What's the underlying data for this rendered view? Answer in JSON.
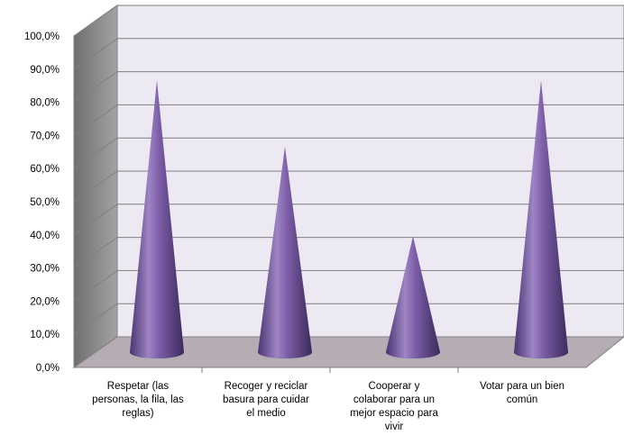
{
  "chart_data": {
    "type": "bar",
    "style": "3d-cone",
    "title": "",
    "xlabel": "",
    "ylabel": "",
    "ylim": [
      0,
      100
    ],
    "ytick_step": 10,
    "y_ticks": [
      "0,0%",
      "10,0%",
      "20,0%",
      "30,0%",
      "40,0%",
      "50,0%",
      "60,0%",
      "70,0%",
      "80,0%",
      "90,0%",
      "100,0%"
    ],
    "categories": [
      [
        "Respetar (las",
        "personas, la fila, las",
        "reglas)"
      ],
      [
        "Recoger y reciclar",
        "basura para cuidar",
        "el medio"
      ],
      [
        "Cooperar y",
        "colaborar para un",
        "mejor espacio para",
        "vivir"
      ],
      [
        "Votar para un bien",
        "común"
      ]
    ],
    "values": [
      82,
      62,
      35,
      82
    ],
    "grid": true,
    "legend": "none",
    "colors": {
      "bar": "#7b5ca6",
      "back_wall": "#ece9f2",
      "side_wall": "#8c8c8c",
      "floor": "#b5acb4",
      "grid": "#7f7f7f"
    }
  }
}
